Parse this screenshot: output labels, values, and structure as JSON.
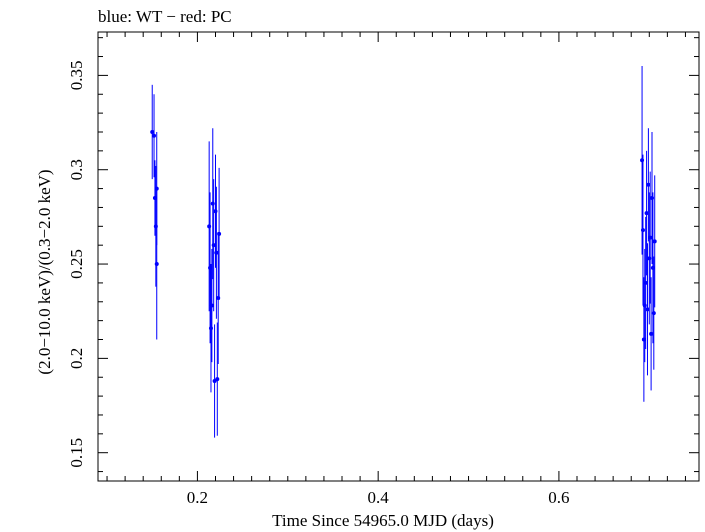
{
  "chart_data": {
    "type": "scatter",
    "title": "blue: WT − red: PC",
    "xlabel": "Time Since 54965.0 MJD (days)",
    "ylabel": "(2.0−10.0 keV)/(0.3−2.0 keV)",
    "xlim": [
      0.09,
      0.755
    ],
    "ylim": [
      0.135,
      0.373
    ],
    "xticks": [
      0.2,
      0.4,
      0.6
    ],
    "xtick_labels": [
      "0.2",
      "0.4",
      "0.6"
    ],
    "yticks": [
      0.15,
      0.2,
      0.25,
      0.3,
      0.35
    ],
    "ytick_labels": [
      "0.15",
      "0.2",
      "0.25",
      "0.3",
      "0.35"
    ],
    "grid": false,
    "series": [
      {
        "name": "WT",
        "color": "#0000ff",
        "points": [
          {
            "x": 0.15,
            "y": 0.32,
            "yerr": 0.025
          },
          {
            "x": 0.152,
            "y": 0.318,
            "yerr": 0.022
          },
          {
            "x": 0.153,
            "y": 0.285,
            "yerr": 0.02
          },
          {
            "x": 0.154,
            "y": 0.27,
            "yerr": 0.032
          },
          {
            "x": 0.155,
            "y": 0.29,
            "yerr": 0.03
          },
          {
            "x": 0.155,
            "y": 0.25,
            "yerr": 0.04
          },
          {
            "x": 0.213,
            "y": 0.27,
            "yerr": 0.045
          },
          {
            "x": 0.214,
            "y": 0.248,
            "yerr": 0.04
          },
          {
            "x": 0.215,
            "y": 0.216,
            "yerr": 0.034
          },
          {
            "x": 0.216,
            "y": 0.228,
            "yerr": 0.03
          },
          {
            "x": 0.217,
            "y": 0.282,
            "yerr": 0.04
          },
          {
            "x": 0.218,
            "y": 0.26,
            "yerr": 0.035
          },
          {
            "x": 0.219,
            "y": 0.188,
            "yerr": 0.03
          },
          {
            "x": 0.22,
            "y": 0.278,
            "yerr": 0.03
          },
          {
            "x": 0.221,
            "y": 0.256,
            "yerr": 0.035
          },
          {
            "x": 0.222,
            "y": 0.189,
            "yerr": 0.03
          },
          {
            "x": 0.223,
            "y": 0.232,
            "yerr": 0.035
          },
          {
            "x": 0.224,
            "y": 0.266,
            "yerr": 0.035
          },
          {
            "x": 0.692,
            "y": 0.305,
            "yerr": 0.05
          },
          {
            "x": 0.693,
            "y": 0.268,
            "yerr": 0.04
          },
          {
            "x": 0.694,
            "y": 0.21,
            "yerr": 0.033
          },
          {
            "x": 0.695,
            "y": 0.228,
            "yerr": 0.03
          },
          {
            "x": 0.696,
            "y": 0.24,
            "yerr": 0.035
          },
          {
            "x": 0.697,
            "y": 0.277,
            "yerr": 0.033
          },
          {
            "x": 0.698,
            "y": 0.226,
            "yerr": 0.035
          },
          {
            "x": 0.699,
            "y": 0.292,
            "yerr": 0.03
          },
          {
            "x": 0.7,
            "y": 0.253,
            "yerr": 0.035
          },
          {
            "x": 0.701,
            "y": 0.264,
            "yerr": 0.035
          },
          {
            "x": 0.702,
            "y": 0.213,
            "yerr": 0.03
          },
          {
            "x": 0.703,
            "y": 0.285,
            "yerr": 0.035
          },
          {
            "x": 0.704,
            "y": 0.248,
            "yerr": 0.04
          },
          {
            "x": 0.705,
            "y": 0.224,
            "yerr": 0.03
          },
          {
            "x": 0.706,
            "y": 0.262,
            "yerr": 0.035
          }
        ]
      },
      {
        "name": "PC",
        "color": "#ff0000",
        "points": []
      }
    ]
  }
}
